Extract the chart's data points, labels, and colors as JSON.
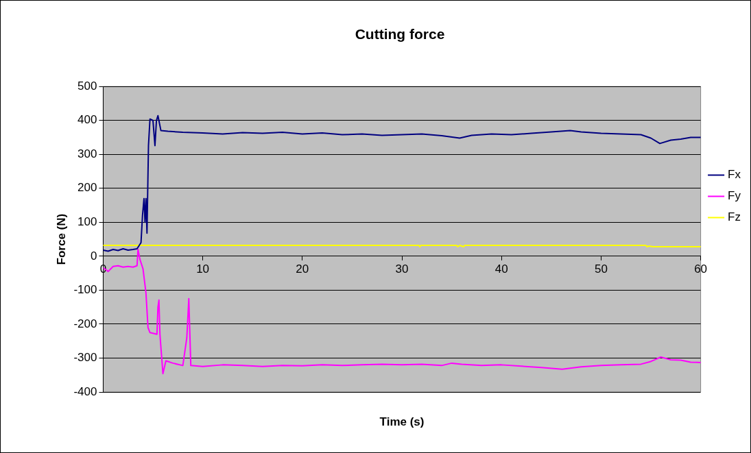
{
  "chart_data": {
    "type": "line",
    "title": "Cutting force",
    "xlabel": "Time (s)",
    "ylabel": "Force (N)",
    "xlim": [
      0,
      60
    ],
    "xticks": [
      0,
      10,
      20,
      30,
      40,
      50,
      60
    ],
    "ylim": [
      -400,
      500
    ],
    "yticks": [
      -400,
      -300,
      -200,
      -100,
      0,
      100,
      200,
      300,
      400,
      500
    ],
    "grid": "y",
    "legend": "right",
    "marker": "none",
    "line_style": "solid",
    "series": [
      {
        "name": "Fx",
        "color": "#000080",
        "x": [
          0,
          0.5,
          1,
          1.5,
          2,
          2.5,
          3,
          3.4,
          3.8,
          3.95,
          4.1,
          4.2,
          4.3,
          4.4,
          4.55,
          4.7,
          5.0,
          5.2,
          5.35,
          5.5,
          5.8,
          6.5,
          8,
          10,
          12,
          14,
          16,
          18,
          20,
          22,
          24,
          26,
          28,
          30,
          32,
          34,
          35.8,
          37,
          39,
          41,
          43,
          45,
          46.9,
          48,
          50,
          52,
          54,
          55,
          55.9,
          57,
          58,
          59,
          60
        ],
        "values": [
          18,
          15,
          20,
          17,
          22,
          18,
          20,
          22,
          40,
          120,
          170,
          100,
          170,
          68,
          326,
          404,
          400,
          326,
          400,
          414,
          370,
          368,
          365,
          363,
          360,
          364,
          362,
          365,
          360,
          363,
          358,
          360,
          356,
          358,
          360,
          355,
          348,
          356,
          360,
          358,
          362,
          366,
          370,
          366,
          362,
          360,
          358,
          348,
          332,
          342,
          345,
          350,
          350
        ]
      },
      {
        "name": "Fy",
        "color": "#ff00ff",
        "x": [
          0,
          0.3,
          0.5,
          1,
          1.5,
          2,
          2.5,
          3,
          3.4,
          3.5,
          3.7,
          4.0,
          4.3,
          4.5,
          4.7,
          5.4,
          5.5,
          5.6,
          5.7,
          6.0,
          6.3,
          7,
          8,
          8.4,
          8.6,
          8.8,
          10,
          12,
          14,
          16,
          18,
          20,
          22,
          24,
          26,
          28,
          30,
          32,
          34,
          35,
          36,
          38,
          40,
          42,
          44,
          46.1,
          48,
          50,
          52,
          54,
          55,
          56,
          57,
          58,
          59,
          60
        ],
        "values": [
          -35,
          -40,
          -45,
          -30,
          -28,
          -32,
          -30,
          -32,
          -28,
          20,
          -10,
          -37,
          -109,
          -210,
          -225,
          -230,
          -150,
          -129,
          -230,
          -346,
          -308,
          -315,
          -322,
          -240,
          -125,
          -322,
          -325,
          -320,
          -322,
          -325,
          -322,
          -323,
          -320,
          -322,
          -320,
          -318,
          -320,
          -318,
          -322,
          -315,
          -318,
          -322,
          -320,
          -324,
          -328,
          -333,
          -326,
          -322,
          -320,
          -318,
          -310,
          -297,
          -305,
          -306,
          -312,
          -313
        ]
      },
      {
        "name": "Fz",
        "color": "#ffff00",
        "x": [
          0,
          31.7,
          31.8,
          31.9,
          35.5,
          35.6,
          35.8,
          36.2,
          36.3,
          54.5,
          54.6,
          54.8,
          55.2,
          60
        ],
        "values": [
          32,
          32,
          28,
          32,
          32,
          28,
          32,
          28,
          32,
          32,
          28,
          30,
          28,
          28
        ]
      }
    ]
  }
}
